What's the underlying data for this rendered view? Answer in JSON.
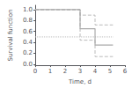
{
  "chart_data": {
    "type": "line",
    "xlabel": "Time, d",
    "ylabel": "Survival function",
    "xlim": [
      0,
      6
    ],
    "xticks": [
      0,
      1,
      2,
      3,
      4,
      5,
      6
    ],
    "ylim": [
      -0.02,
      1.08
    ],
    "yticks": [
      {
        "value": 0.0,
        "label": "0.0"
      },
      {
        "value": 0.2,
        "label": "0.2"
      },
      {
        "value": 0.4,
        "label": "0.4"
      },
      {
        "value": 0.6,
        "label": "0.6"
      },
      {
        "value": 0.8,
        "label": "0.8"
      },
      {
        "value": 1.0,
        "label": "1.0"
      }
    ],
    "grid": false,
    "series": [
      {
        "color": "#bbbbbb",
        "line_style": "dotted",
        "x": [
          0,
          5.2
        ],
        "values": [
          0.5,
          0.5
        ]
      },
      {
        "color": "#bbbbbb",
        "line_style": "dashed",
        "x": [
          0,
          3,
          3,
          4,
          4,
          5.2
        ],
        "values": [
          1.0,
          1.0,
          0.9,
          0.9,
          0.72,
          0.72
        ]
      },
      {
        "color": "#bbbbbb",
        "line_style": "dashed",
        "x": [
          0,
          3,
          3,
          4,
          4,
          5.2
        ],
        "values": [
          1.0,
          1.0,
          0.44,
          0.44,
          0.14,
          0.14
        ]
      },
      {
        "color": "#aaaaaa",
        "line_style": "solid",
        "x": [
          0,
          3,
          3,
          4,
          4,
          5.2
        ],
        "values": [
          1.0,
          1.0,
          0.65,
          0.65,
          0.35,
          0.35
        ]
      }
    ]
  }
}
